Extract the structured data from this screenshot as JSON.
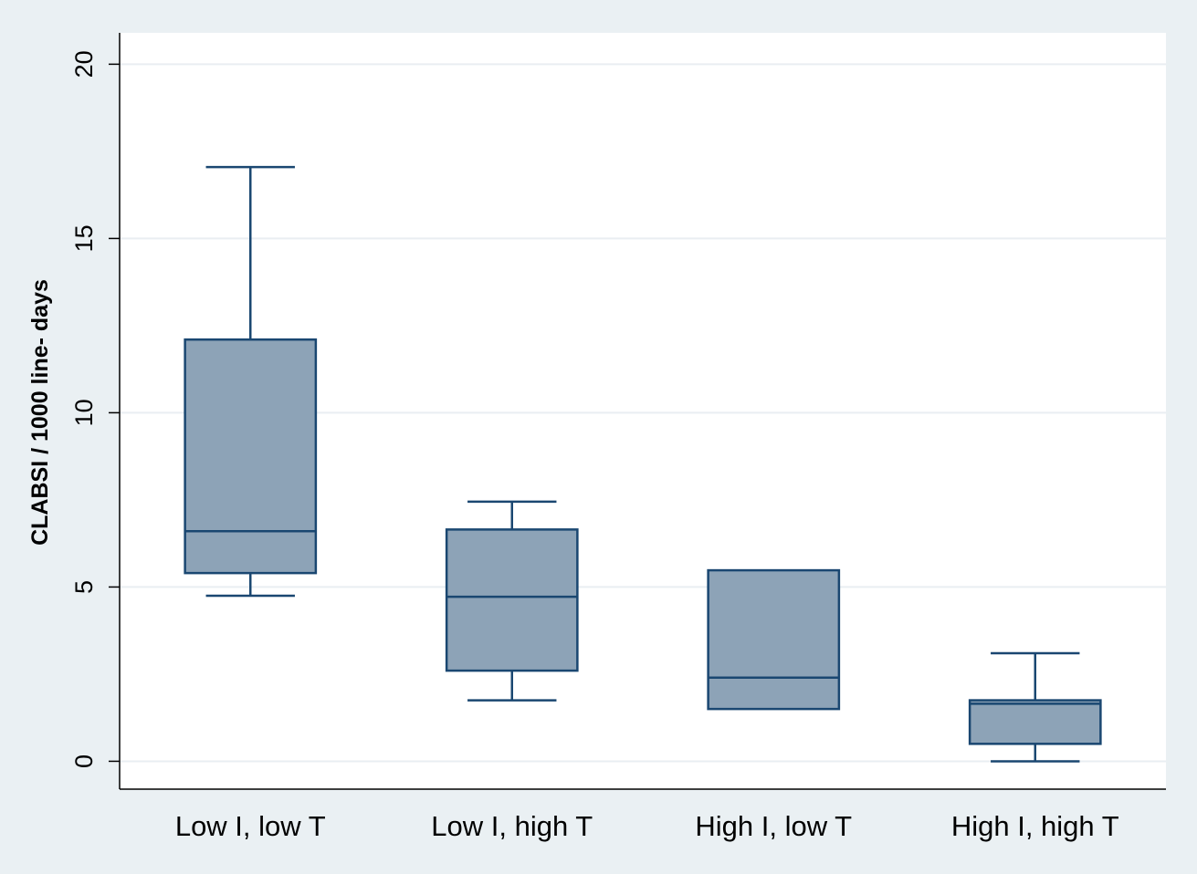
{
  "chart_data": {
    "type": "boxplot",
    "ylabel": "CLABSI / 1000 line- days",
    "ylim": [
      -0.8,
      20.9
    ],
    "yticks": [
      0,
      5,
      10,
      15,
      20
    ],
    "grid": true,
    "categories": [
      "Low I, low T",
      "Low I, high T",
      "High I, low T",
      "High I, high T"
    ],
    "boxes": [
      {
        "category": "Low I, low T",
        "whisker_low": 4.75,
        "q1": 5.4,
        "median": 6.6,
        "q3": 12.1,
        "whisker_high": 17.05
      },
      {
        "category": "Low I, high T",
        "whisker_low": 1.75,
        "q1": 2.6,
        "median": 4.72,
        "q3": 6.65,
        "whisker_high": 7.45
      },
      {
        "category": "High I, low T",
        "whisker_low": 1.5,
        "q1": 1.5,
        "median": 2.4,
        "q3": 5.48,
        "whisker_high": 5.48
      },
      {
        "category": "High I, high T",
        "whisker_low": 0.0,
        "q1": 0.5,
        "median": 1.65,
        "q3": 1.75,
        "whisker_high": 3.1
      }
    ],
    "colors": {
      "background": "#eaf0f3",
      "plot_background": "#ffffff",
      "box_fill": "#8da3b7",
      "box_stroke": "#1a4771",
      "grid": "#e9eef2",
      "axis": "#000000",
      "text": "#000000"
    }
  }
}
